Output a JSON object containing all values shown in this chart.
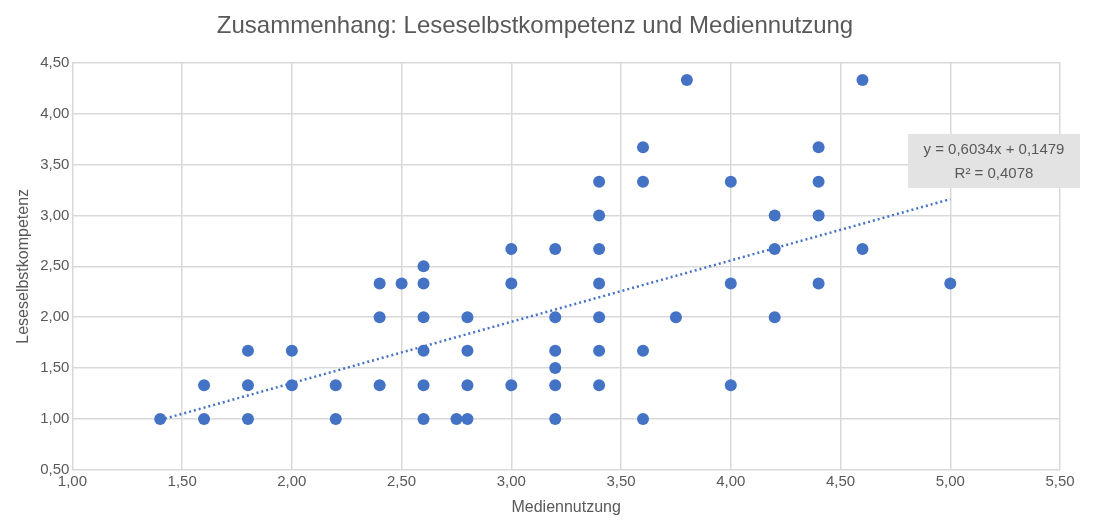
{
  "chart_data": {
    "type": "scatter",
    "title": "Zusammenhang: Leseselbstkompetenz und Mediennutzung",
    "xlabel": "Mediennutzung",
    "ylabel": "Leseselbstkompetenz",
    "xlim": [
      1,
      5.5
    ],
    "ylim": [
      0.5,
      4.5
    ],
    "xticks": [
      {
        "value": 1,
        "label": "1,00"
      },
      {
        "value": 1.5,
        "label": "1,50"
      },
      {
        "value": 2,
        "label": "2,00"
      },
      {
        "value": 2.5,
        "label": "2,50"
      },
      {
        "value": 3,
        "label": "3,00"
      },
      {
        "value": 3.5,
        "label": "3,50"
      },
      {
        "value": 4,
        "label": "4,00"
      },
      {
        "value": 4.5,
        "label": "4,50"
      },
      {
        "value": 5,
        "label": "5,00"
      },
      {
        "value": 5.5,
        "label": "5,50"
      }
    ],
    "yticks": [
      {
        "value": 0.5,
        "label": "0,50"
      },
      {
        "value": 1,
        "label": "1,00"
      },
      {
        "value": 1.5,
        "label": "1,50"
      },
      {
        "value": 2,
        "label": "2,00"
      },
      {
        "value": 2.5,
        "label": "2,50"
      },
      {
        "value": 3,
        "label": "3,00"
      },
      {
        "value": 3.5,
        "label": "3,50"
      },
      {
        "value": 4,
        "label": "4,00"
      },
      {
        "value": 4.5,
        "label": "4,50"
      }
    ],
    "grid": true,
    "marker": "circle",
    "series": [
      {
        "color": "#4472c4",
        "x": [
          1.4,
          1.6,
          1.6,
          1.8,
          1.8,
          1.8,
          2.0,
          2.0,
          2.2,
          2.2,
          2.4,
          2.4,
          2.4,
          2.5,
          2.6,
          2.6,
          2.6,
          2.6,
          2.6,
          2.6,
          2.75,
          2.8,
          2.8,
          2.8,
          2.8,
          3.0,
          3.0,
          3.0,
          3.2,
          3.2,
          3.2,
          3.2,
          3.2,
          3.2,
          3.4,
          3.4,
          3.4,
          3.4,
          3.4,
          3.4,
          3.4,
          3.6,
          3.6,
          3.6,
          3.6,
          3.75,
          3.8,
          4.0,
          4.0,
          4.0,
          4.2,
          4.2,
          4.2,
          4.4,
          4.4,
          4.4,
          4.4,
          4.6,
          4.6,
          5.0
        ],
        "values": [
          1.0,
          1.33,
          1.0,
          1.67,
          1.33,
          1.0,
          1.67,
          1.33,
          1.33,
          1.0,
          2.33,
          2.0,
          1.33,
          2.33,
          2.5,
          2.33,
          2.0,
          1.67,
          1.33,
          1.0,
          1.0,
          1.0,
          2.0,
          1.67,
          1.33,
          2.67,
          2.33,
          1.33,
          2.67,
          2.0,
          1.67,
          1.5,
          1.33,
          1.0,
          3.33,
          3.0,
          2.67,
          2.33,
          2.0,
          1.67,
          1.33,
          3.67,
          3.33,
          1.67,
          1.0,
          2.0,
          4.33,
          3.33,
          2.33,
          1.33,
          3.0,
          2.67,
          2.0,
          3.67,
          3.33,
          3.0,
          2.33,
          4.33,
          2.67,
          2.33
        ]
      },
      {
        "type": "line",
        "color": "#4472c4",
        "line_style": "dotted",
        "marker": "none",
        "x": [
          1.4,
          5.0
        ],
        "values": [
          0.99,
          3.16
        ]
      }
    ],
    "annotations": [
      "y = 0,6034x + 0,1479",
      "R² = 0,4078"
    ]
  }
}
